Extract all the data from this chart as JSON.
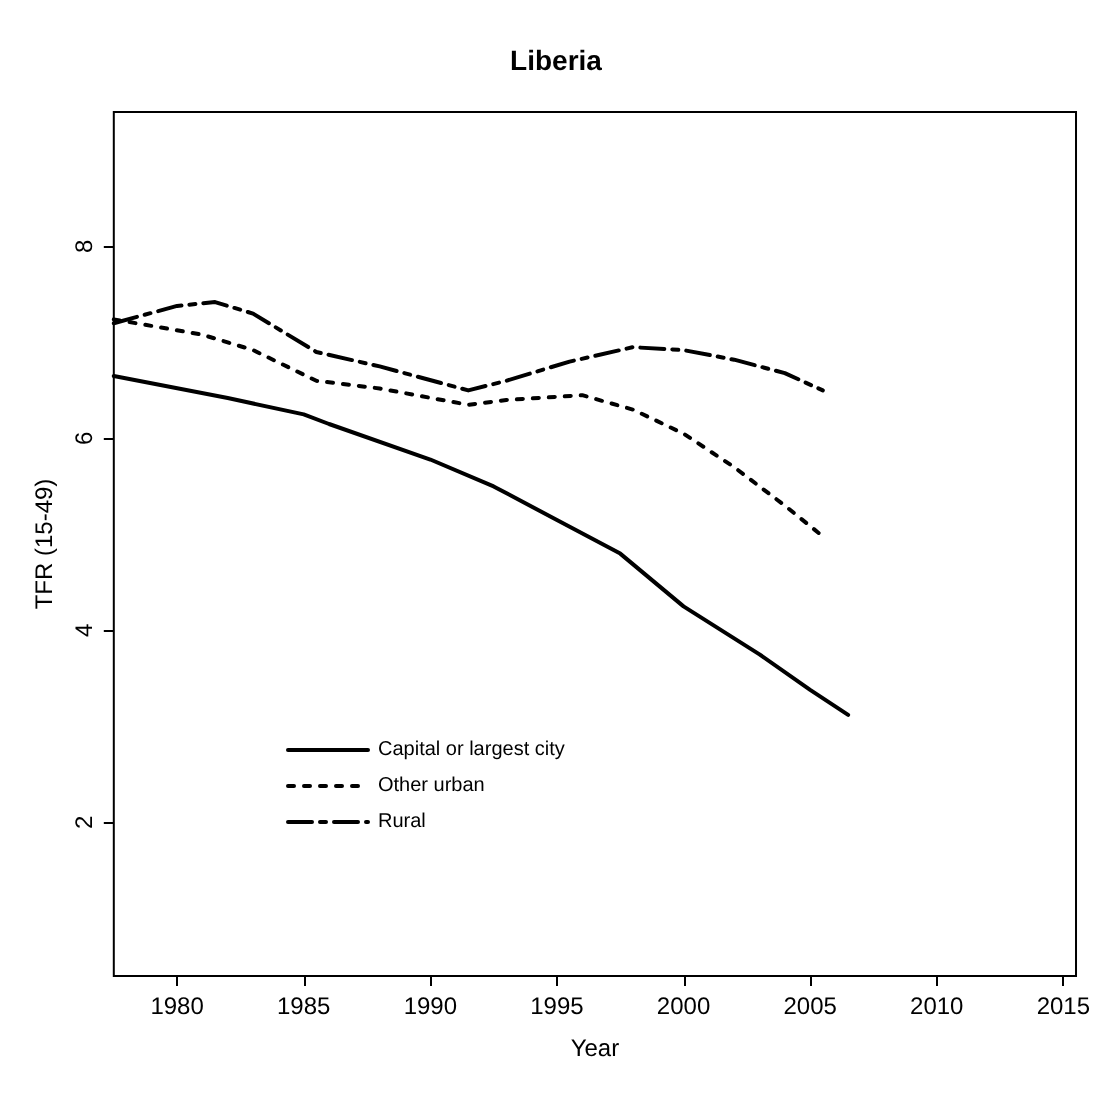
{
  "chart_data": {
    "type": "line",
    "title": "Liberia",
    "xlabel": "Year",
    "ylabel": "TFR (15-49)",
    "xlim": [
      1977.5,
      2015.5
    ],
    "xticks": [
      1980,
      1985,
      1990,
      1995,
      2000,
      2005,
      2010,
      2015
    ],
    "ylim": [
      0.4,
      9.4
    ],
    "yticks": [
      2,
      4,
      6,
      8
    ],
    "grid": false,
    "legend": "bottom left",
    "marker": "none",
    "series": [
      {
        "name": "Capital or largest city",
        "color": "#000000",
        "line_style": "solid",
        "x": [
          1977.5,
          1982,
          1985,
          1986,
          1990,
          1992.5,
          1995,
          1997.5,
          2000,
          2003,
          2005,
          2006.5
        ],
        "values": [
          6.65,
          6.42,
          6.25,
          6.15,
          5.78,
          5.5,
          5.15,
          4.8,
          4.25,
          3.75,
          3.38,
          3.12
        ]
      },
      {
        "name": "Other urban",
        "color": "#000000",
        "line_style": "dotted",
        "x": [
          1977.5,
          1981,
          1983,
          1985.5,
          1988,
          1991.5,
          1993,
          1996,
          1998,
          2000,
          2002,
          2004,
          2005.5
        ],
        "values": [
          7.24,
          7.08,
          6.92,
          6.6,
          6.52,
          6.35,
          6.4,
          6.45,
          6.3,
          6.05,
          5.7,
          5.3,
          4.98
        ]
      },
      {
        "name": "Rural",
        "color": "#000000",
        "line_style": "dashed",
        "x": [
          1977.5,
          1980,
          1981.5,
          1983,
          1985.5,
          1988,
          1991.5,
          1993,
          1995.5,
          1998,
          2000,
          2002,
          2004,
          2005.5
        ],
        "values": [
          7.2,
          7.38,
          7.42,
          7.3,
          6.9,
          6.75,
          6.5,
          6.6,
          6.8,
          6.95,
          6.92,
          6.82,
          6.68,
          6.5
        ]
      }
    ]
  }
}
